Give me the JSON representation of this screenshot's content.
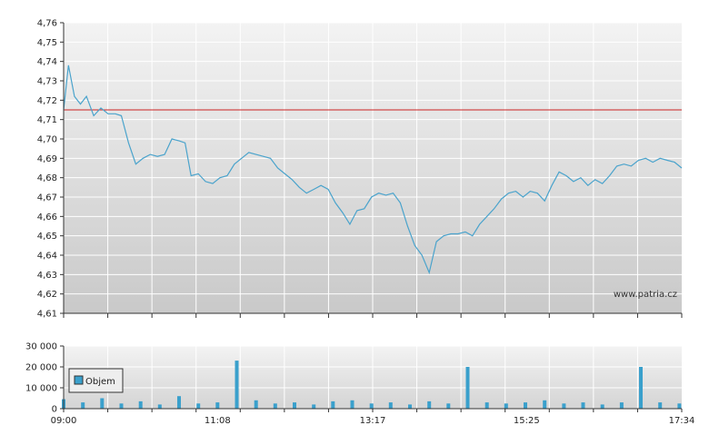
{
  "watermark": "www.patria.cz",
  "colors": {
    "price_line": "#4aa3cc",
    "reference_line": "#cc2222",
    "volume_bar": "#3aa0cc",
    "grid": "#ffffff",
    "axis": "#333333"
  },
  "chart_data": [
    {
      "type": "line",
      "series": [
        {
          "x": [
            "09:00",
            "09:04",
            "09:09",
            "09:14",
            "09:19",
            "09:25",
            "09:31",
            "09:37",
            "09:43",
            "09:48",
            "09:54",
            "10:00",
            "10:06",
            "10:12",
            "10:18",
            "10:24",
            "10:30",
            "10:36",
            "10:41",
            "10:46",
            "10:52",
            "10:58",
            "11:04",
            "11:10",
            "11:16",
            "11:22",
            "11:28",
            "11:34",
            "11:40",
            "11:46",
            "11:52",
            "11:58",
            "12:04",
            "12:10",
            "12:16",
            "12:22",
            "12:28",
            "12:34",
            "12:40",
            "12:46",
            "12:52",
            "12:58",
            "13:04",
            "13:10",
            "13:16",
            "13:22",
            "13:28",
            "13:34",
            "13:40",
            "13:46",
            "13:52",
            "13:58",
            "14:04",
            "14:10",
            "14:16",
            "14:22",
            "14:28",
            "14:34",
            "14:40",
            "14:46",
            "14:52",
            "14:58",
            "15:04",
            "15:10",
            "15:16",
            "15:22",
            "15:28",
            "15:34",
            "15:40",
            "15:46",
            "15:52",
            "15:58",
            "16:04",
            "16:10",
            "16:16",
            "16:22",
            "16:28",
            "16:34",
            "16:40",
            "16:46",
            "16:52",
            "16:58",
            "17:04",
            "17:10",
            "17:16",
            "17:22",
            "17:28",
            "17:34"
          ],
          "values": [
            4.715,
            4.738,
            4.722,
            4.718,
            4.722,
            4.712,
            4.716,
            4.713,
            4.713,
            4.712,
            4.698,
            4.687,
            4.69,
            4.692,
            4.691,
            4.692,
            4.7,
            4.699,
            4.698,
            4.681,
            4.682,
            4.678,
            4.677,
            4.68,
            4.681,
            4.687,
            4.69,
            4.693,
            4.692,
            4.691,
            4.69,
            4.685,
            4.682,
            4.679,
            4.675,
            4.672,
            4.674,
            4.676,
            4.674,
            4.667,
            4.662,
            4.656,
            4.663,
            4.664,
            4.67,
            4.672,
            4.671,
            4.672,
            4.667,
            4.655,
            4.645,
            4.64,
            4.631,
            4.647,
            4.65,
            4.651,
            4.651,
            4.652,
            4.65,
            4.656,
            4.66,
            4.664,
            4.669,
            4.672,
            4.673,
            4.67,
            4.673,
            4.672,
            4.668,
            4.676,
            4.683,
            4.681,
            4.678,
            4.68,
            4.676,
            4.679,
            4.677,
            4.681,
            4.686,
            4.687,
            4.686,
            4.689,
            4.69,
            4.688,
            4.69,
            4.689,
            4.688,
            4.685
          ]
        }
      ],
      "reference_value": 4.715,
      "ylim": [
        4.61,
        4.76
      ],
      "y_ticks": [
        "4,61",
        "4,62",
        "4,63",
        "4,64",
        "4,65",
        "4,66",
        "4,67",
        "4,68",
        "4,69",
        "4,70",
        "4,71",
        "4,72",
        "4,73",
        "4,74",
        "4,75",
        "4,76"
      ],
      "grid": true
    },
    {
      "type": "bar",
      "series": [
        {
          "name": "Objem",
          "x": [
            "09:00",
            "09:16",
            "09:32",
            "09:48",
            "10:04",
            "10:20",
            "10:36",
            "10:52",
            "11:08",
            "11:24",
            "11:40",
            "11:56",
            "12:12",
            "12:28",
            "12:44",
            "13:00",
            "13:16",
            "13:32",
            "13:48",
            "14:04",
            "14:20",
            "14:36",
            "14:52",
            "15:08",
            "15:24",
            "15:40",
            "15:56",
            "16:12",
            "16:28",
            "16:44",
            "17:00",
            "17:16",
            "17:32"
          ],
          "values": [
            4500,
            3000,
            5000,
            2500,
            3500,
            2000,
            6000,
            2500,
            3000,
            23000,
            4000,
            2500,
            3000,
            2000,
            3500,
            4000,
            2500,
            3000,
            2000,
            3500,
            2500,
            20000,
            3000,
            2500,
            3000,
            4000,
            2500,
            3000,
            2000,
            3000,
            20000,
            3000,
            2500
          ]
        }
      ],
      "ylim": [
        0,
        30000
      ],
      "y_ticks": [
        "0",
        "10 000",
        "20 000",
        "30 000"
      ],
      "x_ticks": [
        "09:00",
        "11:08",
        "13:17",
        "15:25",
        "17:34"
      ],
      "legend": "top-left",
      "grid": true
    }
  ]
}
